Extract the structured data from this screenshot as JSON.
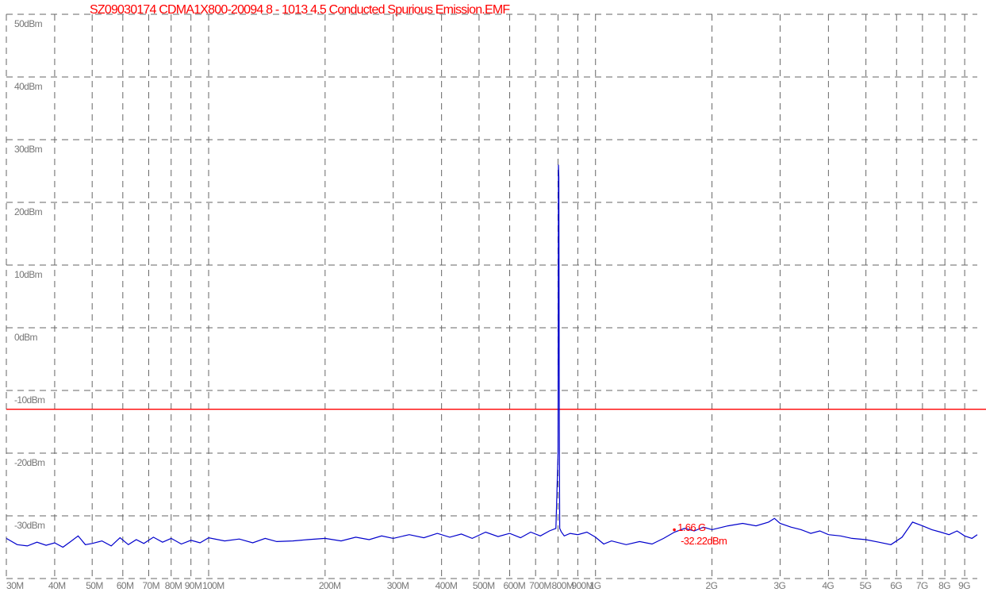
{
  "chart_data": {
    "type": "line",
    "title": "SZ09030174 CDMA1X800-20094 8 - 1013 4.5 Conducted Spurious Emission.EMF",
    "title_color": "#ff0000",
    "log_x": true,
    "grid": true,
    "xlim": [
      30,
      9700
    ],
    "ylim": [
      -40,
      50
    ],
    "xticks": [
      {
        "value": 30,
        "label": "30M"
      },
      {
        "value": 40,
        "label": "40M"
      },
      {
        "value": 50,
        "label": "50M"
      },
      {
        "value": 60,
        "label": "60M"
      },
      {
        "value": 70,
        "label": "70M"
      },
      {
        "value": 80,
        "label": "80M"
      },
      {
        "value": 90,
        "label": "90M"
      },
      {
        "value": 100,
        "label": "100M"
      },
      {
        "value": 200,
        "label": "200M"
      },
      {
        "value": 300,
        "label": "300M"
      },
      {
        "value": 400,
        "label": "400M"
      },
      {
        "value": 500,
        "label": "500M"
      },
      {
        "value": 600,
        "label": "600M"
      },
      {
        "value": 700,
        "label": "700M"
      },
      {
        "value": 800,
        "label": "800M"
      },
      {
        "value": 900,
        "label": "900M"
      },
      {
        "value": 1000,
        "label": "1G"
      },
      {
        "value": 2000,
        "label": "2G"
      },
      {
        "value": 3000,
        "label": "3G"
      },
      {
        "value": 4000,
        "label": "4G"
      },
      {
        "value": 5000,
        "label": "5G"
      },
      {
        "value": 6000,
        "label": "6G"
      },
      {
        "value": 7000,
        "label": "7G"
      },
      {
        "value": 8000,
        "label": "8G"
      },
      {
        "value": 9000,
        "label": "9G"
      }
    ],
    "yticks": [
      {
        "value": 50,
        "label": "50dBm"
      },
      {
        "value": 40,
        "label": "40dBm"
      },
      {
        "value": 30,
        "label": "30dBm"
      },
      {
        "value": 20,
        "label": "20dBm"
      },
      {
        "value": 10,
        "label": "10dBm"
      },
      {
        "value": 0,
        "label": "0dBm"
      },
      {
        "value": -10,
        "label": "-10dBm"
      },
      {
        "value": -20,
        "label": "-20dBm"
      },
      {
        "value": -30,
        "label": "-30dBm"
      },
      {
        "value": -40
      }
    ],
    "limit_line": {
      "value": -13,
      "color": "#ff0000"
    },
    "marker": {
      "x": 1660,
      "y": -32.22,
      "x_label": "1.66 G",
      "y_label": "-32.22dBm",
      "color": "#ff0000"
    },
    "x": [
      30,
      32,
      34,
      36,
      38,
      40,
      42,
      44,
      46,
      48,
      50,
      53,
      56,
      59,
      62,
      65,
      68,
      72,
      76,
      80,
      85,
      90,
      95,
      100,
      110,
      120,
      130,
      140,
      150,
      165,
      180,
      200,
      220,
      240,
      260,
      280,
      300,
      330,
      360,
      390,
      420,
      450,
      480,
      520,
      560,
      600,
      640,
      680,
      720,
      760,
      790,
      800,
      802,
      804,
      806,
      808,
      815,
      830,
      860,
      900,
      950,
      1000,
      1050,
      1100,
      1200,
      1300,
      1400,
      1500,
      1600,
      1700,
      1800,
      1900,
      2000,
      2200,
      2400,
      2600,
      2800,
      2900,
      3000,
      3200,
      3400,
      3600,
      3800,
      4000,
      4300,
      4600,
      5000,
      5400,
      5800,
      6200,
      6600,
      7000,
      7400,
      7800,
      8200,
      8600,
      9000,
      9400,
      9700
    ],
    "series": [
      {
        "name": "trace",
        "color": "#0000cc",
        "values": [
          -33.6,
          -34.6,
          -34.8,
          -34.2,
          -34.7,
          -34.3,
          -35.0,
          -34.1,
          -33.2,
          -34.6,
          -34.4,
          -34.0,
          -34.8,
          -33.5,
          -34.6,
          -33.8,
          -34.4,
          -33.4,
          -34.2,
          -33.6,
          -34.5,
          -33.9,
          -34.3,
          -33.5,
          -34.0,
          -33.7,
          -34.3,
          -33.6,
          -34.1,
          -34.0,
          -33.8,
          -33.6,
          -34.0,
          -33.4,
          -33.8,
          -33.2,
          -33.6,
          -33.0,
          -33.5,
          -32.8,
          -33.4,
          -32.9,
          -33.6,
          -32.6,
          -33.3,
          -32.8,
          -33.5,
          -32.6,
          -33.2,
          -32.4,
          -32.0,
          -20.0,
          26.0,
          24.0,
          -15.0,
          -32.0,
          -32.5,
          -33.2,
          -32.8,
          -33.0,
          -32.6,
          -33.4,
          -34.5,
          -34.0,
          -34.6,
          -34.1,
          -34.5,
          -33.6,
          -32.6,
          -32.0,
          -32.4,
          -31.8,
          -32.2,
          -31.6,
          -31.2,
          -31.6,
          -31.0,
          -30.4,
          -31.2,
          -31.8,
          -32.2,
          -32.8,
          -32.4,
          -33.0,
          -33.2,
          -33.6,
          -33.8,
          -34.2,
          -34.6,
          -33.4,
          -31.0,
          -31.6,
          -32.2,
          -32.6,
          -33.0,
          -32.4,
          -33.2,
          -33.6,
          -33.0
        ]
      }
    ]
  }
}
